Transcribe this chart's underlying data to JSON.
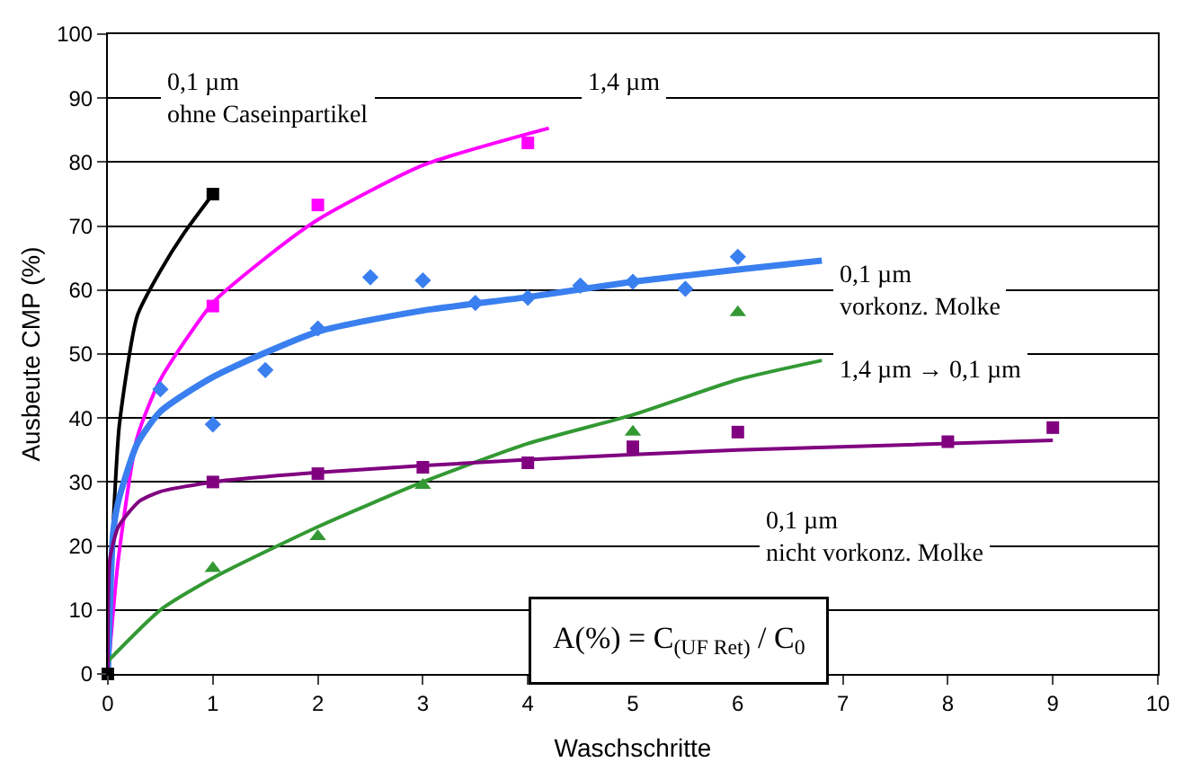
{
  "chart_data": {
    "type": "scatter",
    "xlabel": "Waschschritte",
    "ylabel": "Ausbeute CMP (%)",
    "xlim": [
      0,
      10
    ],
    "xticks": [
      0,
      1,
      2,
      3,
      4,
      5,
      6,
      7,
      8,
      9,
      10
    ],
    "ylim": [
      0,
      100
    ],
    "yticks": [
      0,
      10,
      20,
      30,
      40,
      50,
      60,
      70,
      80,
      90,
      100
    ],
    "grid": "y",
    "annotations": [
      "0,1 µm\nohne Caseinpartikel",
      "1,4 µm",
      "0,1 µm\nvorkonz. Molke",
      "1,4 µm → 0,1 µm",
      "0,1 µm\nnicht vorkonz. Molke",
      "A(%) = C$_{(UF Ret)}$ / C$_{0}$"
    ],
    "series": [
      {
        "marker": "square",
        "color": "#000000",
        "x": [
          0,
          1
        ],
        "values": [
          0,
          75
        ]
      },
      {
        "type": "line",
        "marker": "none",
        "color": "#000000",
        "x": [
          0,
          0.02,
          0.056,
          0.11,
          0.28,
          0.5,
          0.73,
          1
        ],
        "values": [
          0,
          12,
          25,
          39,
          56,
          63,
          69,
          75
        ]
      },
      {
        "marker": "square",
        "color": "#ff00ff",
        "x": [
          1,
          2,
          4
        ],
        "values": [
          57.5,
          73.3,
          83
        ]
      },
      {
        "type": "line",
        "marker": "none",
        "color": "#ff00ff",
        "x": [
          0,
          0.1,
          0.28,
          0.5,
          1,
          1.5,
          2,
          3,
          4.2
        ],
        "values": [
          0,
          18,
          37,
          46,
          58,
          65,
          71,
          79.5,
          85.3
        ]
      },
      {
        "marker": "diamond",
        "color": "#3a7fef",
        "x": [
          0.5,
          1,
          1.5,
          2,
          2.5,
          3,
          3.5,
          4,
          4.5,
          5,
          5.5,
          6
        ],
        "values": [
          44.5,
          39,
          47.5,
          54,
          62,
          61.5,
          58,
          58.8,
          60.7,
          61.3,
          60.2,
          65.2
        ]
      },
      {
        "type": "line",
        "marker": "none",
        "color": "#3a7fef",
        "x": [
          0,
          0.05,
          0.1,
          0.28,
          0.5,
          1,
          2,
          3,
          4,
          5,
          6,
          6.8
        ],
        "values": [
          0,
          22,
          27,
          36,
          41,
          46.4,
          53.5,
          56.8,
          58.9,
          61.3,
          63.2,
          64.6
        ]
      },
      {
        "marker": "triangle",
        "color": "#339933",
        "x": [
          1,
          2,
          3,
          5,
          6
        ],
        "values": [
          16.5,
          21.5,
          29.5,
          37.8,
          56.5
        ]
      },
      {
        "type": "line",
        "marker": "none",
        "color": "#339933",
        "x": [
          0,
          0.5,
          1,
          2,
          3,
          4,
          5,
          6,
          6.8
        ],
        "values": [
          2,
          10,
          15,
          23,
          30,
          36,
          40.5,
          46,
          49
        ]
      },
      {
        "marker": "square",
        "color": "#800080",
        "x": [
          1,
          2,
          3,
          4,
          5,
          6,
          8,
          9
        ],
        "values": [
          30,
          31.3,
          32.3,
          33,
          35.5,
          37.8,
          36.3,
          38.5
        ]
      },
      {
        "type": "line",
        "marker": "none",
        "color": "#800080",
        "x": [
          0,
          0.02,
          0.1,
          0.3,
          0.5,
          1,
          2,
          4,
          6,
          9
        ],
        "values": [
          0,
          18,
          23,
          27,
          28.5,
          30,
          31.5,
          33.5,
          35,
          36.5
        ]
      }
    ]
  }
}
